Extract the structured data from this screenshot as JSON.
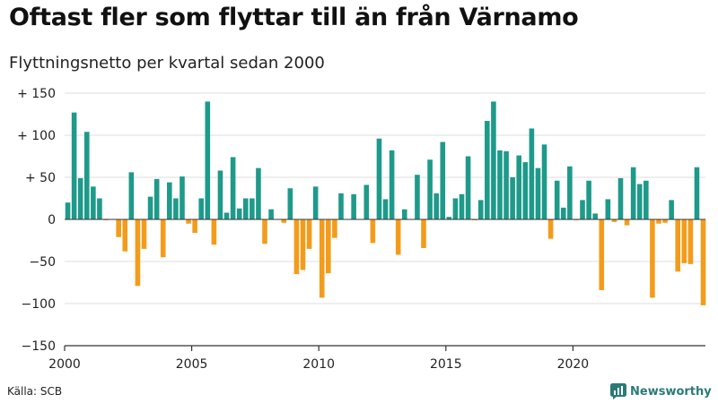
{
  "title": "Oftast fler som flyttar till än från Värnamo",
  "subtitle": "Flyttningsnetto per kvartal sedan 2000",
  "source": "Källa: SCB",
  "brand": "Newsworthy",
  "colors": {
    "positive": "#1e9a8a",
    "negative": "#f39c1b",
    "grid": "#dddddd",
    "axis": "#333333",
    "brand": "#2b7a78"
  },
  "chart_data": {
    "type": "bar",
    "x_ticks": [
      {
        "label": "2000",
        "year": 2000
      },
      {
        "label": "2005",
        "year": 2005
      },
      {
        "label": "2010",
        "year": 2010
      },
      {
        "label": "2015",
        "year": 2015
      },
      {
        "label": "2020",
        "year": 2020
      }
    ],
    "y_ticks": [
      {
        "label": "+ 150",
        "value": 150
      },
      {
        "label": "+ 100",
        "value": 100
      },
      {
        "label": "+  50",
        "value": 50
      },
      {
        "label": "0",
        "value": 0
      },
      {
        "label": "−50",
        "value": -50
      },
      {
        "label": "−100",
        "value": -100
      },
      {
        "label": "−150",
        "value": -150
      }
    ],
    "ylim": [
      -150,
      150
    ],
    "grid": true,
    "values": [
      20,
      127,
      49,
      104,
      39,
      25,
      -1,
      0,
      -21,
      -38,
      56,
      -79,
      -35,
      27,
      48,
      -45,
      44,
      25,
      51,
      -5,
      -16,
      25,
      140,
      -30,
      58,
      8,
      74,
      13,
      25,
      25,
      61,
      -29,
      12,
      0,
      -4,
      37,
      -65,
      -60,
      -35,
      39,
      -93,
      -64,
      -22,
      31,
      0,
      30,
      0,
      41,
      -28,
      96,
      24,
      82,
      -42,
      12,
      0,
      53,
      -34,
      71,
      31,
      92,
      3,
      25,
      30,
      75,
      -1,
      23,
      117,
      140,
      82,
      81,
      50,
      76,
      68,
      108,
      61,
      89,
      -23,
      46,
      14,
      63,
      -1,
      23,
      46,
      7,
      -84,
      24,
      -3,
      49,
      -7,
      62,
      42,
      46,
      -93,
      -5,
      -4,
      23,
      -62,
      -52,
      -53,
      62,
      -102
    ]
  }
}
